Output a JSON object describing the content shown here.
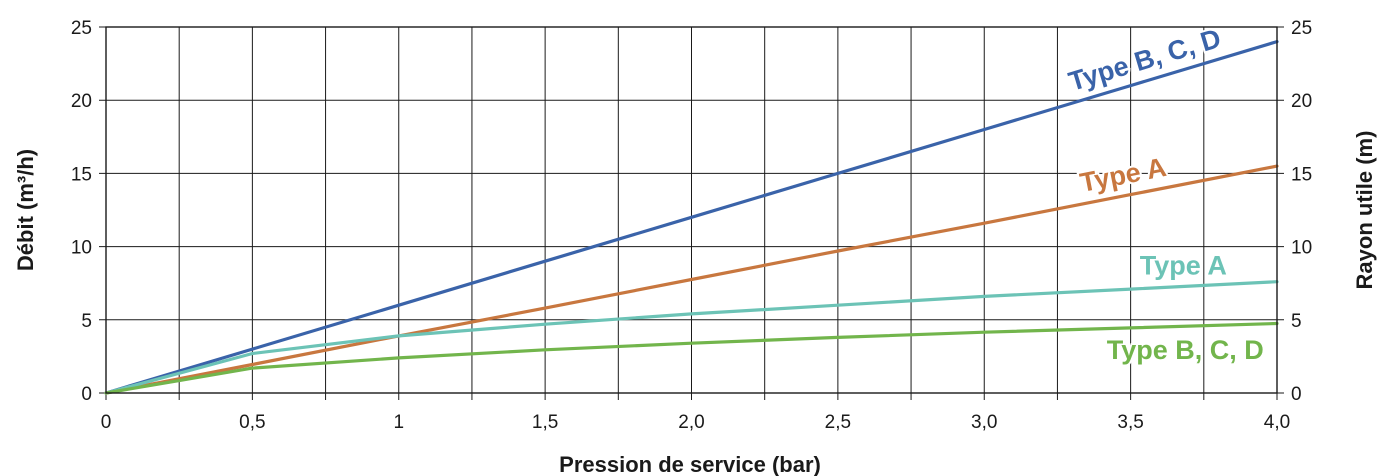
{
  "chart_data": {
    "type": "line",
    "title": "",
    "xlabel": "Pression de service (bar)",
    "ylabel": "Débit (m³/h)",
    "y2label": "Rayon utile (m)",
    "xlim": [
      0,
      4
    ],
    "ylim": [
      0,
      25
    ],
    "y2lim": [
      0,
      25
    ],
    "grid": true,
    "x_ticks": [
      0,
      0.25,
      0.5,
      0.75,
      1,
      1.25,
      1.5,
      1.75,
      2,
      2.25,
      2.5,
      2.75,
      3,
      3.25,
      3.5,
      3.75,
      4
    ],
    "x_tick_labels": [
      {
        "x": 0,
        "label": "0"
      },
      {
        "x": 0.5,
        "label": "0,5"
      },
      {
        "x": 1,
        "label": "1"
      },
      {
        "x": 1.5,
        "label": "1,5"
      },
      {
        "x": 2,
        "label": "2,0"
      },
      {
        "x": 2.5,
        "label": "2,5"
      },
      {
        "x": 3,
        "label": "3,0"
      },
      {
        "x": 3.5,
        "label": "3,5"
      },
      {
        "x": 4,
        "label": "4,0"
      }
    ],
    "y_ticks": [
      0,
      5,
      10,
      15,
      20,
      25
    ],
    "y_tick_labels": [
      "0",
      "5",
      "10",
      "15",
      "20",
      "25"
    ],
    "y2_tick_labels": [
      "0",
      "5",
      "10",
      "15",
      "20",
      "25"
    ],
    "series": [
      {
        "name": "Type B, C, D",
        "color": "#3a63a9",
        "x": [
          0,
          0.5,
          1,
          1.5,
          2,
          2.5,
          3,
          3.5,
          4
        ],
        "y": [
          0,
          3,
          6,
          9,
          12,
          15,
          18,
          21,
          24
        ]
      },
      {
        "name": "Type A",
        "color": "#c8773f",
        "x": [
          0,
          0.5,
          1,
          1.5,
          2,
          2.5,
          3,
          3.5,
          4
        ],
        "y": [
          0,
          1.95,
          3.9,
          5.8,
          7.75,
          9.7,
          11.6,
          13.55,
          15.5
        ]
      },
      {
        "name": "Type A",
        "color": "#6cc3b6",
        "x": [
          0,
          0.5,
          1,
          1.5,
          2,
          2.5,
          3,
          3.5,
          4
        ],
        "y": [
          0,
          2.7,
          3.9,
          4.7,
          5.4,
          6,
          6.6,
          7.1,
          7.6
        ]
      },
      {
        "name": "Type B, C, D",
        "color": "#72b54c",
        "x": [
          0,
          0.5,
          1,
          1.5,
          2,
          2.5,
          3,
          3.5,
          4
        ],
        "y": [
          0,
          1.7,
          2.4,
          2.95,
          3.4,
          3.8,
          4.15,
          4.45,
          4.75
        ]
      }
    ]
  }
}
